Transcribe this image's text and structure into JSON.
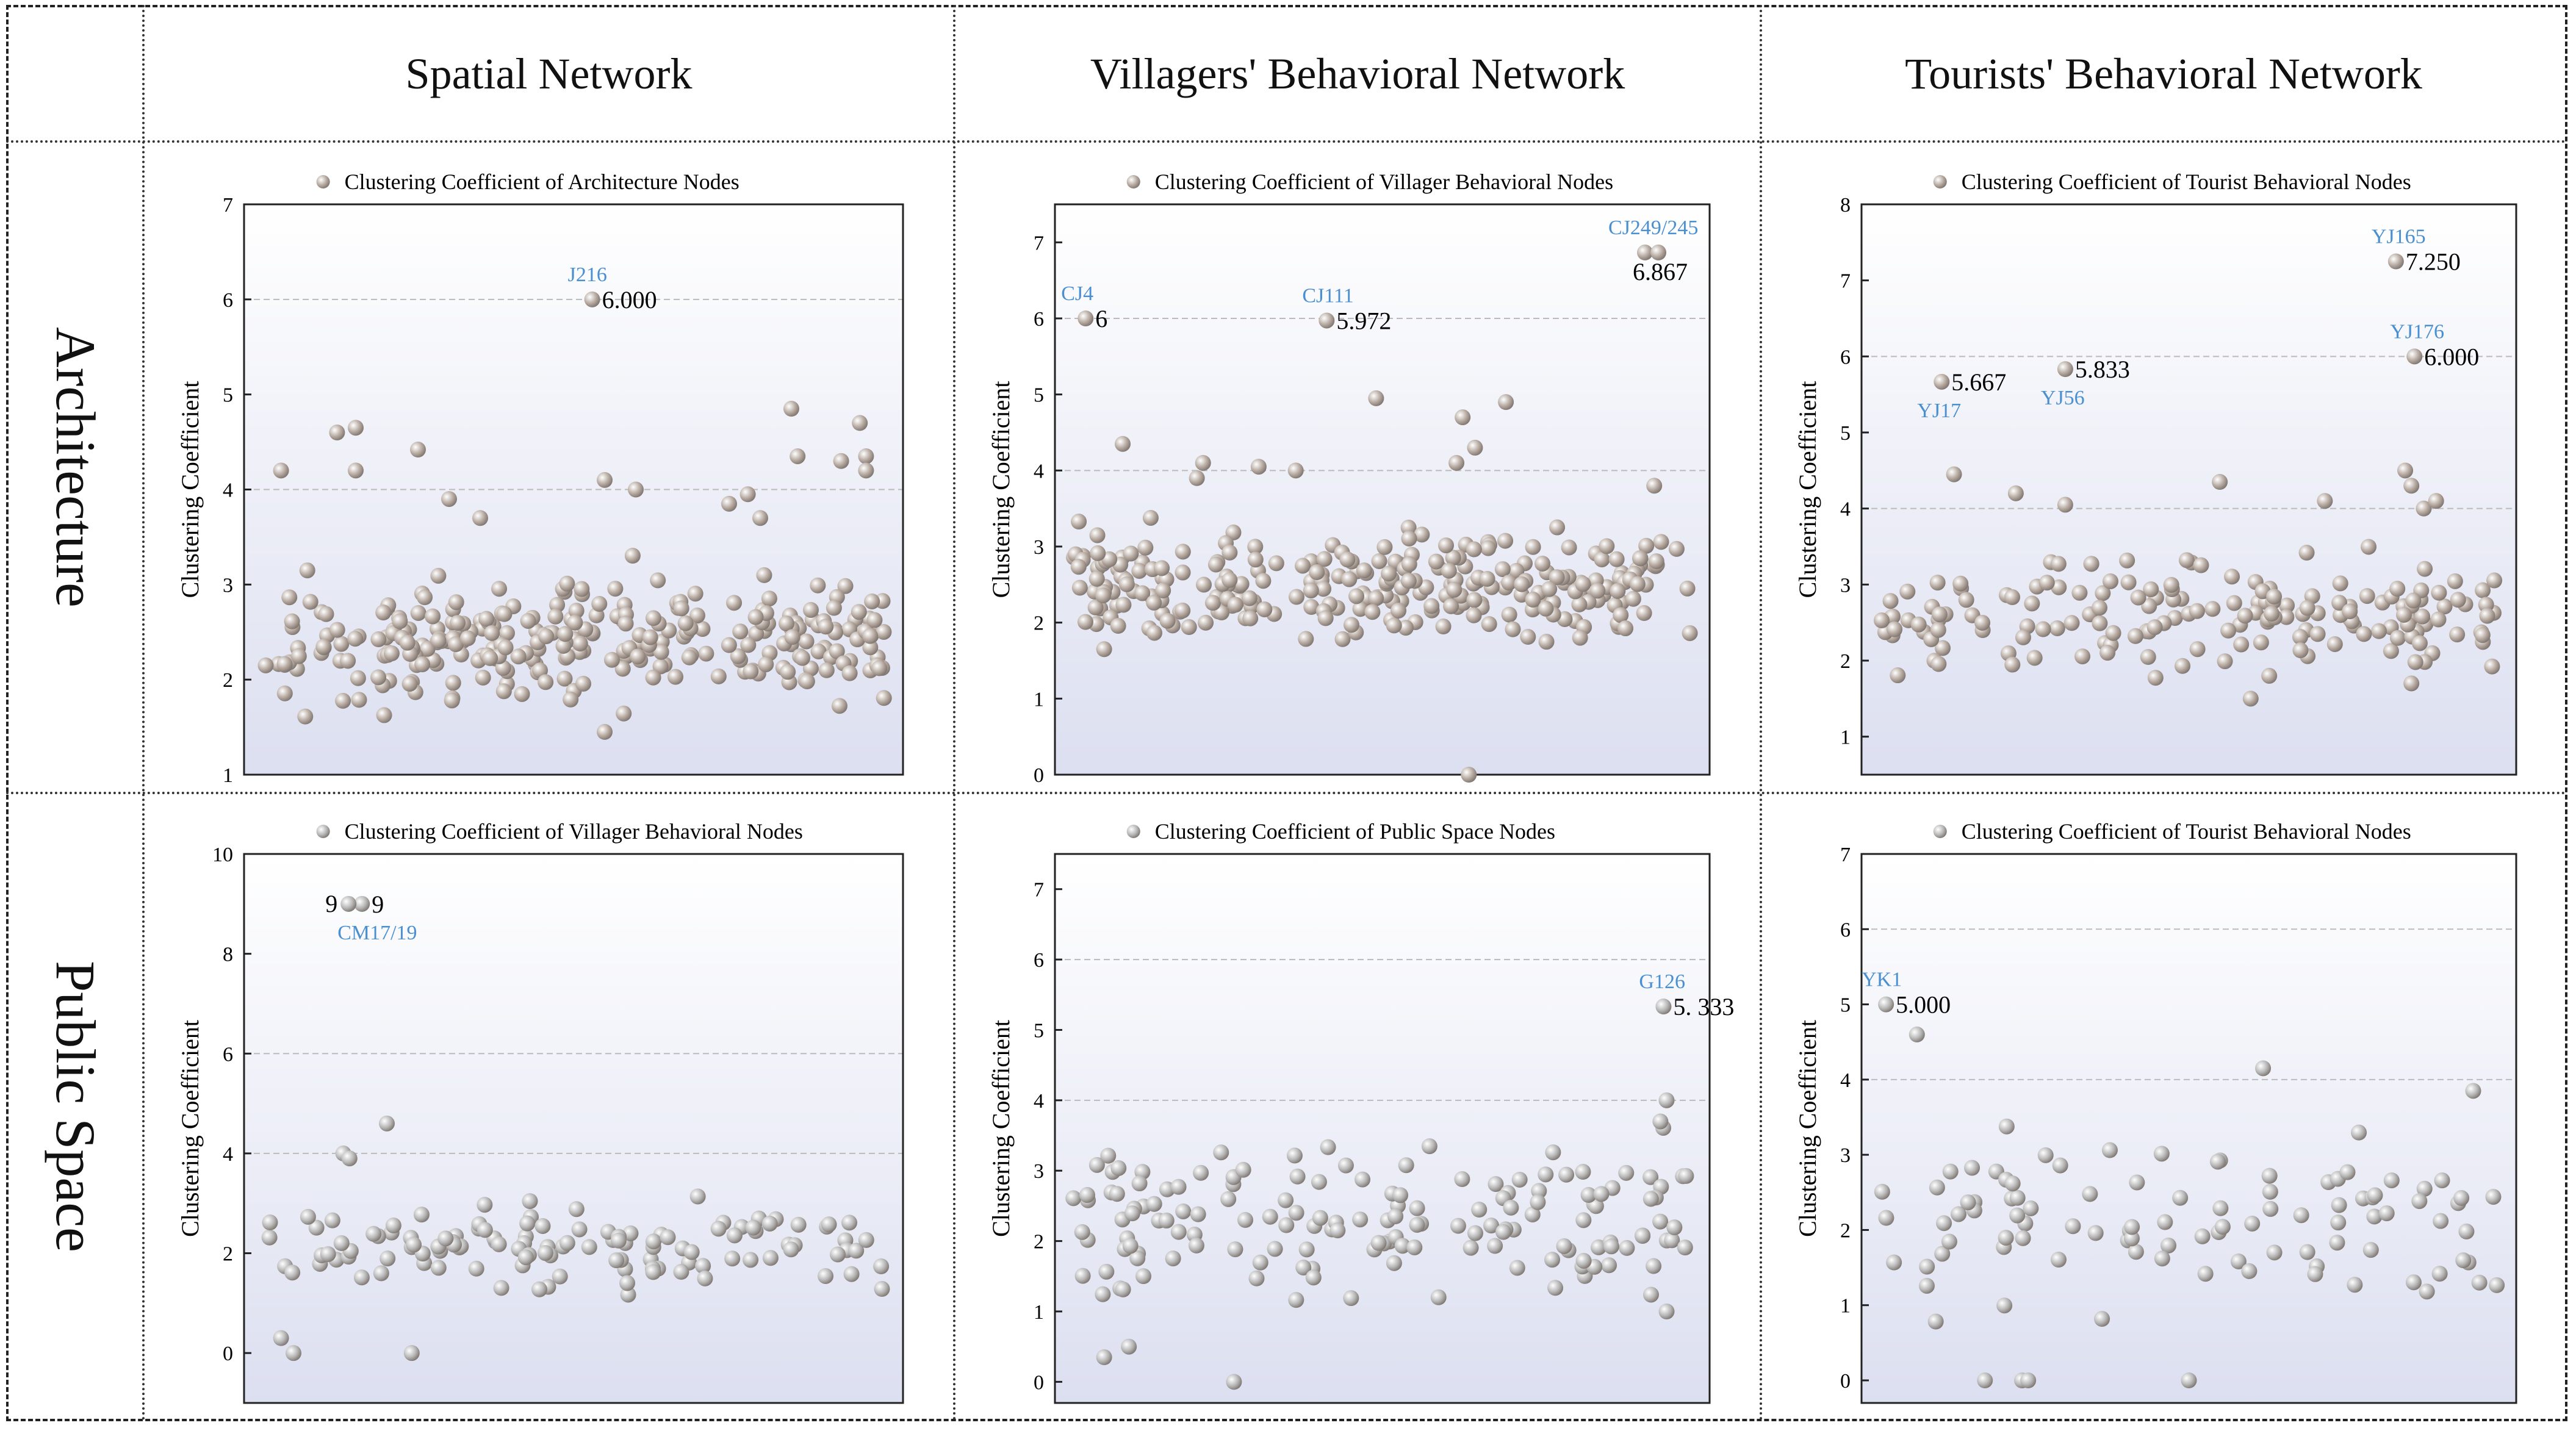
{
  "columns": [
    {
      "label": "Spatial Network"
    },
    {
      "label": "Villagers' Behavioral Network"
    },
    {
      "label": "Tourists' Behavioral Network"
    }
  ],
  "rows": [
    {
      "label": "Architecture"
    },
    {
      "label": "Public Space"
    }
  ],
  "colors": {
    "point_architecture": "#b4a79e",
    "point_public": "#b5b5b5",
    "label_blue": "#4a8fd0",
    "plot_gradient_top": "#ffffff",
    "plot_gradient_bottom": "#dcdff0"
  },
  "chart_data": [
    {
      "id": "arch_spatial",
      "type": "scatter",
      "legend": "Clustering Coefficient of Architecture Nodes",
      "ylabel": "Clustering Coefficient",
      "ylim": [
        1,
        7
      ],
      "yticks": [
        1,
        2,
        3,
        4,
        5,
        6,
        7
      ],
      "gridlines": [
        4,
        6
      ],
      "n_points": 290,
      "seed": 11,
      "base_range": [
        1.5,
        3.3
      ],
      "extras": [
        [
          0.03,
          4.2
        ],
        [
          0.12,
          4.6
        ],
        [
          0.15,
          4.65
        ],
        [
          0.25,
          4.42
        ],
        [
          0.3,
          3.9
        ],
        [
          0.35,
          3.7
        ],
        [
          0.55,
          4.1
        ],
        [
          0.6,
          4.0
        ],
        [
          0.75,
          3.85
        ],
        [
          0.85,
          4.85
        ],
        [
          0.86,
          4.35
        ],
        [
          0.93,
          4.3
        ],
        [
          0.96,
          4.7
        ],
        [
          0.97,
          4.35
        ],
        [
          0.97,
          4.2
        ],
        [
          0.15,
          4.2
        ],
        [
          0.78,
          3.95
        ],
        [
          0.8,
          3.7
        ],
        [
          0.55,
          1.45
        ]
      ],
      "annotations": [
        {
          "x": 0.53,
          "y": 6.0,
          "value": "6.000",
          "name": "J216",
          "name_pos": "above"
        }
      ]
    },
    {
      "id": "arch_villager",
      "type": "scatter",
      "legend": "Clustering Coefficient of Villager Behavioral Nodes",
      "ylabel": "Clustering Coefficient",
      "ylim": [
        0,
        7.5
      ],
      "yticks": [
        0,
        1,
        2,
        3,
        4,
        5,
        6,
        7
      ],
      "gridlines": [
        4,
        6
      ],
      "n_points": 270,
      "seed": 23,
      "base_range": [
        1.5,
        3.5
      ],
      "extras": [
        [
          0.05,
          1.65
        ],
        [
          0.08,
          4.35
        ],
        [
          0.21,
          4.1
        ],
        [
          0.36,
          4.0
        ],
        [
          0.49,
          4.95
        ],
        [
          0.62,
          4.1
        ],
        [
          0.63,
          4.7
        ],
        [
          0.65,
          4.3
        ],
        [
          0.7,
          4.9
        ],
        [
          0.94,
          3.8
        ],
        [
          0.82,
          1.8
        ],
        [
          0.64,
          0.0
        ],
        [
          0.2,
          3.9
        ],
        [
          0.3,
          4.05
        ]
      ],
      "annotations": [
        {
          "x": 0.02,
          "y": 6.0,
          "value": "6",
          "name": "CJ4",
          "name_pos": "above"
        },
        {
          "x": 0.41,
          "y": 5.972,
          "value": "5.972",
          "name": "CJ111",
          "name_pos": "above"
        },
        {
          "x": 0.925,
          "y": 6.867,
          "value": "6.867",
          "name": "CJ249/245",
          "name_pos": "above",
          "double": true
        }
      ]
    },
    {
      "id": "arch_tourist",
      "type": "scatter",
      "legend": "Clustering Coefficient of Tourist Behavioral Nodes",
      "ylabel": "Clustering Coefficient",
      "ylim": [
        0.5,
        8
      ],
      "yticks": [
        1,
        2,
        3,
        4,
        5,
        6,
        7,
        8
      ],
      "gridlines": [
        4,
        6
      ],
      "n_points": 170,
      "seed": 37,
      "base_range": [
        1.6,
        3.6
      ],
      "extras": [
        [
          0.12,
          4.45
        ],
        [
          0.22,
          4.2
        ],
        [
          0.3,
          4.05
        ],
        [
          0.55,
          4.35
        ],
        [
          0.72,
          4.1
        ],
        [
          0.85,
          4.5
        ],
        [
          0.86,
          4.3
        ],
        [
          0.88,
          4.0
        ],
        [
          0.9,
          4.1
        ],
        [
          0.6,
          1.5
        ],
        [
          0.63,
          1.8
        ],
        [
          0.86,
          1.7
        ]
      ],
      "annotations": [
        {
          "x": 0.1,
          "y": 5.667,
          "value": "5.667",
          "name": "YJ17",
          "name_pos": "below"
        },
        {
          "x": 0.3,
          "y": 5.833,
          "value": "5.833",
          "name": "YJ56",
          "name_pos": "below"
        },
        {
          "x": 0.835,
          "y": 7.25,
          "value": "7.250",
          "name": "YJ165",
          "name_pos": "above"
        },
        {
          "x": 0.865,
          "y": 6.0,
          "value": "6.000",
          "name": "YJ176",
          "name_pos": "above"
        }
      ]
    },
    {
      "id": "public_spatial",
      "type": "scatter",
      "legend": "Clustering Coefficient of Villager Behavioral Nodes",
      "ylabel": "Clustering Coefficient",
      "ylim": [
        -1,
        10
      ],
      "yticks": [
        0,
        2,
        4,
        6,
        8,
        10
      ],
      "gridlines": [
        4,
        6
      ],
      "n_points": 120,
      "seed": 51,
      "base_range": [
        0.9,
        3.5
      ],
      "extras": [
        [
          0.03,
          0.3
        ],
        [
          0.05,
          0.0
        ],
        [
          0.24,
          0.0
        ],
        [
          0.2,
          4.6
        ],
        [
          0.13,
          4.0
        ],
        [
          0.14,
          3.9
        ]
      ],
      "annotations": [
        {
          "x": 0.16,
          "y": 9.0,
          "value": "9",
          "name": "CM17/19",
          "name_pos": "below",
          "double_left": true
        }
      ]
    },
    {
      "id": "public_villager",
      "type": "scatter",
      "legend": "Clustering Coefficient of Public Space Nodes",
      "ylabel": "Clustering Coefficient",
      "ylim": [
        -0.3,
        7.5
      ],
      "yticks": [
        0,
        1,
        2,
        3,
        4,
        5,
        6,
        7
      ],
      "gridlines": [
        4,
        6
      ],
      "n_points": 150,
      "seed": 67,
      "base_range": [
        0.8,
        3.8
      ],
      "extras": [
        [
          0.05,
          0.35
        ],
        [
          0.09,
          0.5
        ],
        [
          0.26,
          0.0
        ],
        [
          0.96,
          4.0
        ],
        [
          0.95,
          3.7
        ],
        [
          0.96,
          1.0
        ]
      ],
      "annotations": [
        {
          "x": 0.955,
          "y": 5.333,
          "value": "5. 333",
          "name": "G126",
          "name_pos": "above"
        }
      ]
    },
    {
      "id": "public_tourist",
      "type": "scatter",
      "legend": "Clustering Coefficient of Tourist Behavioral Nodes",
      "ylabel": "Clustering Coefficient",
      "ylim": [
        -0.3,
        7
      ],
      "yticks": [
        0,
        1,
        2,
        3,
        4,
        5,
        6,
        7
      ],
      "gridlines": [
        4,
        6
      ],
      "n_points": 95,
      "seed": 83,
      "base_range": [
        0.6,
        3.8
      ],
      "extras": [
        [
          0.06,
          4.6
        ],
        [
          0.17,
          0.0
        ],
        [
          0.23,
          0.0
        ],
        [
          0.24,
          0.0
        ],
        [
          0.5,
          0.0
        ],
        [
          0.62,
          4.15
        ],
        [
          0.96,
          3.85
        ],
        [
          0.97,
          1.3
        ]
      ],
      "annotations": [
        {
          "x": 0.01,
          "y": 5.0,
          "value": "5.000",
          "name": "YK1",
          "name_pos": "above"
        }
      ]
    }
  ]
}
